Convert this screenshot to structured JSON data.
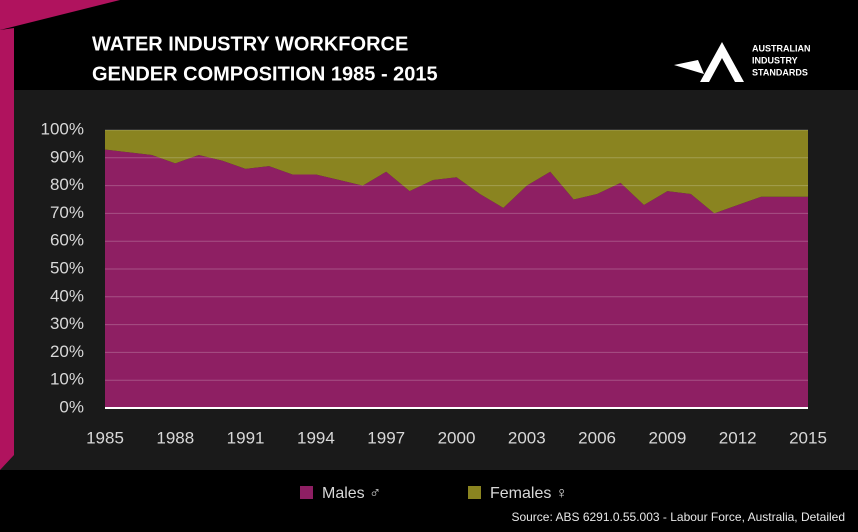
{
  "chart_data": {
    "type": "stacked-area",
    "title": [
      "WATER INDUSTRY WORKFORCE",
      "GENDER COMPOSITION 1985 - 2015"
    ],
    "source": "Source: ABS 6291.0.55.003  - Labour Force, Australia, Detailed",
    "x": [
      1985,
      1986,
      1987,
      1988,
      1989,
      1990,
      1991,
      1992,
      1993,
      1994,
      1995,
      1996,
      1997,
      1998,
      1999,
      2000,
      2001,
      2002,
      2003,
      2004,
      2005,
      2006,
      2007,
      2008,
      2009,
      2010,
      2011,
      2012,
      2013,
      2014,
      2015
    ],
    "series": [
      {
        "name": "Males ♂",
        "color": "#8e1f63",
        "values": [
          93,
          92,
          91,
          88,
          91,
          89,
          86,
          87,
          84,
          84,
          82,
          80,
          85,
          78,
          82,
          83,
          77,
          72,
          80,
          85,
          75,
          77,
          81,
          73,
          78,
          77,
          70,
          73,
          76,
          76,
          76
        ]
      },
      {
        "name": "Females ♀",
        "color": "#8a8420",
        "values": [
          7,
          8,
          9,
          12,
          9,
          11,
          14,
          13,
          16,
          16,
          18,
          20,
          15,
          22,
          18,
          17,
          23,
          28,
          20,
          15,
          25,
          23,
          19,
          27,
          22,
          23,
          30,
          27,
          24,
          24,
          24
        ]
      }
    ],
    "xlim": [
      1985,
      2015
    ],
    "xticks": [
      1985,
      1988,
      1991,
      1994,
      1997,
      2000,
      2003,
      2006,
      2009,
      2012,
      2015
    ],
    "ylim": [
      0,
      100
    ],
    "yticks": [
      {
        "value": 0,
        "label": "0%"
      },
      {
        "value": 10,
        "label": "10%"
      },
      {
        "value": 20,
        "label": "20%"
      },
      {
        "value": 30,
        "label": "30%"
      },
      {
        "value": 40,
        "label": "40%"
      },
      {
        "value": 50,
        "label": "50%"
      },
      {
        "value": 60,
        "label": "60%"
      },
      {
        "value": 70,
        "label": "70%"
      },
      {
        "value": 80,
        "label": "80%"
      },
      {
        "value": 90,
        "label": "90%"
      },
      {
        "value": 100,
        "label": "100%"
      }
    ],
    "grid": true,
    "legend": "bottom"
  },
  "logo": {
    "lines": [
      "AUSTRALIAN",
      "INDUSTRY",
      "STANDARDS"
    ]
  }
}
